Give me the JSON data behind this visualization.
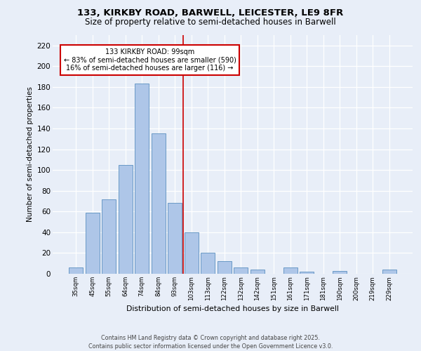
{
  "title1": "133, KIRKBY ROAD, BARWELL, LEICESTER, LE9 8FR",
  "title2": "Size of property relative to semi-detached houses in Barwell",
  "xlabel": "Distribution of semi-detached houses by size in Barwell",
  "ylabel": "Number of semi-detached properties",
  "categories": [
    "35sqm",
    "45sqm",
    "55sqm",
    "64sqm",
    "74sqm",
    "84sqm",
    "93sqm",
    "103sqm",
    "113sqm",
    "122sqm",
    "132sqm",
    "142sqm",
    "151sqm",
    "161sqm",
    "171sqm",
    "181sqm",
    "190sqm",
    "200sqm",
    "219sqm",
    "229sqm"
  ],
  "values": [
    6,
    59,
    72,
    105,
    183,
    135,
    68,
    40,
    20,
    12,
    6,
    4,
    0,
    6,
    2,
    0,
    3,
    0,
    0,
    4
  ],
  "bar_color": "#aec6e8",
  "bar_edge_color": "#5a8fc0",
  "vline_x_index": 7,
  "vline_color": "#cc0000",
  "annotation_title": "133 KIRKBY ROAD: 99sqm",
  "annotation_line1": "← 83% of semi-detached houses are smaller (590)",
  "annotation_line2": "16% of semi-detached houses are larger (116) →",
  "annotation_box_color": "#ffffff",
  "annotation_box_edge": "#cc0000",
  "ylim": [
    0,
    230
  ],
  "yticks": [
    0,
    20,
    40,
    60,
    80,
    100,
    120,
    140,
    160,
    180,
    200,
    220
  ],
  "fig_bg_color": "#e8eef8",
  "plot_bg_color": "#e8eef8",
  "footer1": "Contains HM Land Registry data © Crown copyright and database right 2025.",
  "footer2": "Contains public sector information licensed under the Open Government Licence v3.0."
}
